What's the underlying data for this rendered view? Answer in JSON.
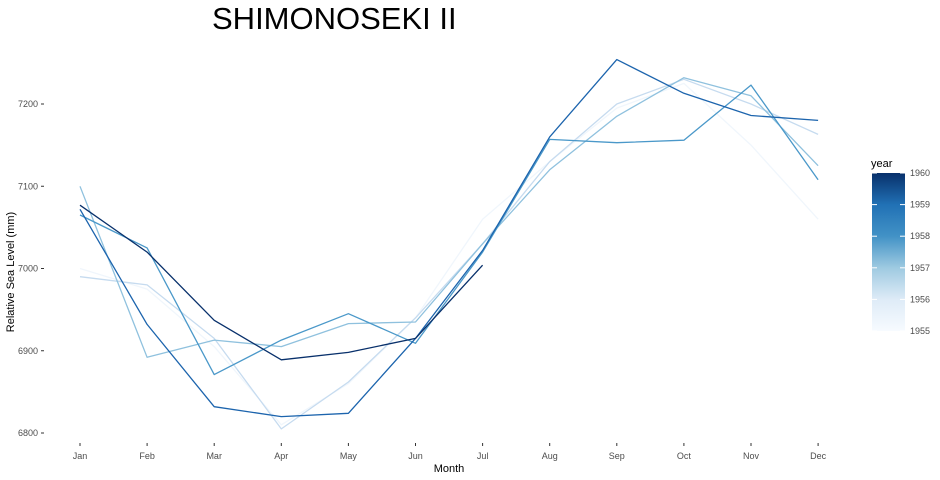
{
  "chart_data": {
    "type": "line",
    "title": "SHIMONOSEKI II",
    "xlabel": "Month",
    "ylabel": "Relative Sea Level (mm)",
    "categories": [
      "Jan",
      "Feb",
      "Mar",
      "Apr",
      "May",
      "Jun",
      "Jul",
      "Aug",
      "Sep",
      "Oct",
      "Nov",
      "Dec"
    ],
    "y_ticks": [
      6800,
      6900,
      7000,
      7100,
      7200
    ],
    "ylim": [
      6790,
      7265
    ],
    "grid": false,
    "legend": {
      "title": "year",
      "position": "right",
      "type": "colorbar",
      "range": [
        1955,
        1960
      ],
      "labels": [
        "1960",
        "1959",
        "1958",
        "1957",
        "1956",
        "1955"
      ],
      "color_low": "#f7fbff",
      "color_high": "#08306b"
    },
    "series": [
      {
        "year": 1955,
        "color": "#f0f6fc",
        "values": [
          7000,
          6975,
          6905,
          6810,
          6860,
          6940,
          7060,
          7130,
          7195,
          7225,
          7150,
          7060
        ]
      },
      {
        "year": 1956,
        "color": "#c6dbef",
        "values": [
          6990,
          6980,
          6915,
          6805,
          6862,
          6940,
          7030,
          7130,
          7200,
          7230,
          7200,
          7163
        ]
      },
      {
        "year": 1957,
        "color": "#8fc1de",
        "values": [
          7100,
          6892,
          6913,
          6905,
          6933,
          6935,
          7030,
          7120,
          7185,
          7232,
          7210,
          7125
        ]
      },
      {
        "year": 1958,
        "color": "#4a98c9",
        "values": [
          7065,
          7025,
          6871,
          6913,
          6945,
          6909,
          7020,
          7157,
          7153,
          7156,
          7223,
          7108
        ]
      },
      {
        "year": 1959,
        "color": "#1c64ad",
        "values": [
          7072,
          6932,
          6832,
          6820,
          6824,
          6915,
          7022,
          7160,
          7254,
          7213,
          7186,
          7180
        ]
      },
      {
        "year": 1960,
        "color": "#08306b",
        "values": [
          7077,
          7020,
          6937,
          6889,
          6898,
          6915,
          7004,
          null,
          null,
          null,
          null,
          null
        ]
      }
    ]
  }
}
